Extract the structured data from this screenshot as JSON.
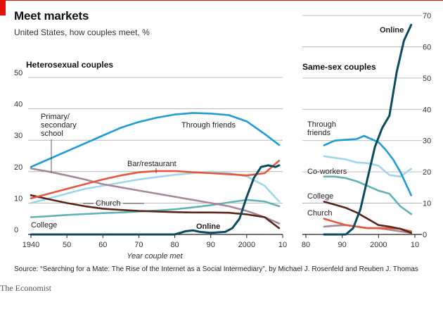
{
  "header": {
    "title": "Meet markets",
    "subtitle": "United States, how couples meet, %"
  },
  "footer": {
    "source": "Source: “Searching for a Mate: The Rise of the Internet as a Social Intermediary”, by Michael J. Rosenfeld and Reuben J. Thomas",
    "publisher": "The Economist"
  },
  "colors": {
    "through_friends": "#1f9bd6",
    "bar_restaurant": "#e8573d",
    "primary_school": "#a7879a",
    "church": "#5a2418",
    "college": "#5fb3b3",
    "coworkers": "#9ed6ec",
    "online": "#0b4b60",
    "grid": "#aaaaaa"
  },
  "chart_data": [
    {
      "type": "line",
      "title": "Heterosexual couples",
      "xlabel": "Year couple met",
      "ylabel": "%",
      "xlim": [
        1940,
        2010
      ],
      "ylim": [
        0,
        50
      ],
      "x_ticks": [
        "1940",
        "50",
        "60",
        "70",
        "80",
        "90",
        "2000",
        "10"
      ],
      "y_ticks": [
        "0",
        "10",
        "20",
        "30",
        "40",
        "50"
      ],
      "grid": true,
      "series": [
        {
          "key": "through_friends",
          "name": "Through friends",
          "x": [
            1940,
            1945,
            1950,
            1955,
            1960,
            1965,
            1970,
            1975,
            1980,
            1985,
            1990,
            1995,
            2000,
            2005,
            2009
          ],
          "values": [
            21.5,
            24,
            26.5,
            29,
            31.5,
            34,
            35.8,
            37.2,
            38.2,
            38.7,
            38.5,
            38,
            36,
            32,
            28.5
          ]
        },
        {
          "key": "bar_restaurant",
          "name": "Bar/restaurant",
          "x": [
            1940,
            1945,
            1950,
            1955,
            1960,
            1965,
            1970,
            1975,
            1980,
            1985,
            1990,
            1995,
            2000,
            2005,
            2009
          ],
          "values": [
            11.5,
            13,
            14.5,
            16,
            17.5,
            18.8,
            19.8,
            20.2,
            20.2,
            19.8,
            19.5,
            19.2,
            18.8,
            19.5,
            23.5
          ]
        },
        {
          "key": "primary_school",
          "name": "Primary/ secondary school",
          "x": [
            1940,
            1945,
            1950,
            1955,
            1960,
            1965,
            1970,
            1975,
            1980,
            1985,
            1990,
            1995,
            2000,
            2005,
            2009
          ],
          "values": [
            21,
            20,
            18.8,
            17.5,
            16,
            15,
            14,
            13,
            12,
            11,
            10,
            9,
            7.5,
            5.5,
            3.5
          ]
        },
        {
          "key": "church",
          "name": "Church",
          "x": [
            1940,
            1945,
            1950,
            1955,
            1960,
            1965,
            1970,
            1975,
            1980,
            1985,
            1990,
            1995,
            2000,
            2005,
            2009
          ],
          "values": [
            12.5,
            11.2,
            10,
            9,
            8.2,
            7.8,
            7.5,
            7.3,
            7.1,
            7,
            7,
            6.9,
            6.4,
            5.5,
            2
          ]
        },
        {
          "key": "college",
          "name": "College",
          "x": [
            1940,
            1945,
            1950,
            1955,
            1960,
            1965,
            1970,
            1975,
            1980,
            1985,
            1990,
            1995,
            2000,
            2005,
            2009
          ],
          "values": [
            5.5,
            5.8,
            6.2,
            6.5,
            6.8,
            7,
            7.3,
            7.6,
            8,
            8.6,
            9.3,
            10.2,
            11,
            10.5,
            9
          ]
        },
        {
          "key": "coworkers",
          "name": "Co-workers",
          "x": [
            1940,
            1945,
            1950,
            1955,
            1960,
            1965,
            1970,
            1975,
            1980,
            1985,
            1990,
            1995,
            2000,
            2005,
            2009
          ],
          "values": [
            10,
            11.5,
            13,
            14.5,
            15.5,
            16.5,
            17.5,
            18.3,
            19,
            19.5,
            20,
            19.5,
            18.5,
            15.5,
            10.5
          ]
        },
        {
          "key": "online",
          "name": "Online",
          "x": [
            1940,
            1980,
            1983,
            1985,
            1987,
            1990,
            1994,
            1996,
            1998,
            2000,
            2002,
            2004,
            2006,
            2008,
            2009
          ],
          "values": [
            0,
            0,
            1,
            1.3,
            0.8,
            0.5,
            0.8,
            2,
            5,
            12,
            18,
            21.5,
            22,
            21.5,
            22
          ]
        }
      ],
      "labels": {
        "through_friends": "Through friends",
        "bar_restaurant": "Bar/restaurant",
        "primary_school": [
          "Primary/",
          "secondary",
          "school"
        ],
        "church": "Church",
        "college": "College",
        "online": "Online"
      }
    },
    {
      "type": "line",
      "title": "Same-sex couples",
      "xlabel": "",
      "ylabel": "%",
      "xlim": [
        1980,
        2010
      ],
      "ylim": [
        0,
        70
      ],
      "x_ticks": [
        "80",
        "90",
        "2000",
        "10"
      ],
      "y_ticks": [
        "0",
        "10",
        "20",
        "30",
        "40",
        "50",
        "60",
        "70"
      ],
      "grid": true,
      "series": [
        {
          "key": "through_friends",
          "name": "Through friends",
          "x": [
            1985,
            1988,
            1991,
            1994,
            1996,
            1998,
            2000,
            2002,
            2004,
            2006,
            2009
          ],
          "values": [
            28.5,
            30,
            30.3,
            30.5,
            31.5,
            30.5,
            29.5,
            27,
            24,
            20,
            12.5
          ]
        },
        {
          "key": "coworkers",
          "name": "Co-workers",
          "x": [
            1985,
            1988,
            1991,
            1994,
            1997,
            2000,
            2003,
            2006,
            2009
          ],
          "values": [
            25,
            24.5,
            24,
            23,
            22.8,
            22,
            19,
            18.5,
            21
          ]
        },
        {
          "key": "college",
          "name": "College",
          "x": [
            1985,
            1988,
            1991,
            1994,
            1997,
            2000,
            2003,
            2006,
            2009
          ],
          "values": [
            18.5,
            18.5,
            18,
            17,
            15.5,
            14,
            13,
            9,
            6.5
          ]
        },
        {
          "key": "church",
          "name": "Church",
          "x": [
            1985,
            1988,
            1991,
            1994,
            1997,
            2000,
            2003,
            2006,
            2009
          ],
          "values": [
            10.5,
            9.5,
            8.5,
            7,
            5,
            3,
            2.5,
            1.8,
            0.5
          ]
        },
        {
          "key": "bar_restaurant",
          "name": "Bar/restaurant",
          "x": [
            1985,
            1988,
            1991,
            1994,
            1997,
            2000,
            2003,
            2006,
            2009
          ],
          "values": [
            5,
            4,
            3,
            2.5,
            2,
            2,
            2,
            1.8,
            1
          ]
        },
        {
          "key": "primary_school",
          "name": "Primary/ secondary school",
          "x": [
            1985,
            1988,
            1991,
            1994,
            1997,
            2000,
            2003,
            2006,
            2009
          ],
          "values": [
            2.5,
            2.8,
            3,
            2.5,
            2,
            2,
            1.5,
            1,
            0.5
          ]
        },
        {
          "key": "online",
          "name": "Online",
          "x": [
            1985,
            1991,
            1993,
            1995,
            1997,
            1999,
            2001,
            2003,
            2005,
            2007,
            2009
          ],
          "values": [
            0,
            0,
            2,
            8,
            18,
            28,
            34,
            38,
            52,
            62,
            67
          ]
        }
      ],
      "labels": {
        "through_friends": [
          "Through",
          "friends"
        ],
        "coworkers": "Co-workers",
        "college": "College",
        "church": "Church",
        "online": "Online"
      }
    }
  ]
}
